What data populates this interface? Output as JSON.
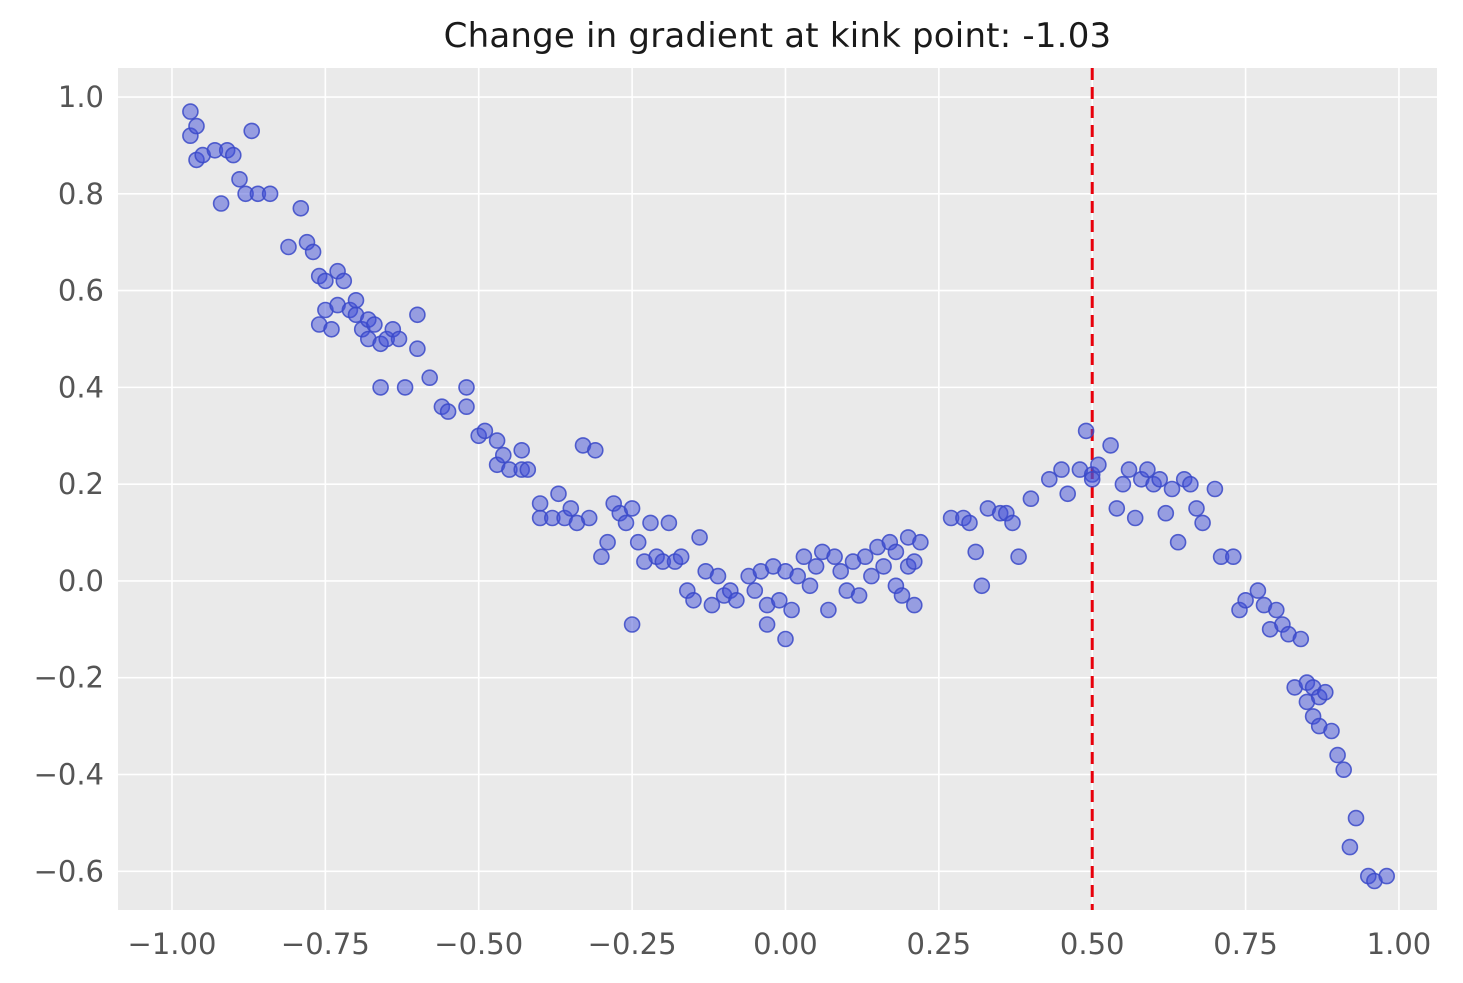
{
  "chart_data": {
    "type": "scatter",
    "title": "Change in gradient at kink point: -1.03",
    "xlabel": "",
    "ylabel": "",
    "grid": true,
    "legend": false,
    "xlim": [
      -1.088,
      1.062
    ],
    "ylim": [
      -0.68,
      1.06
    ],
    "x_ticks": [
      -1.0,
      -0.75,
      -0.5,
      -0.25,
      0.0,
      0.25,
      0.5,
      0.75,
      1.0
    ],
    "x_tick_labels": [
      "−1.00",
      "−0.75",
      "−0.50",
      "−0.25",
      "0.00",
      "0.25",
      "0.50",
      "0.75",
      "1.00"
    ],
    "y_ticks": [
      -0.6,
      -0.4,
      -0.2,
      0.0,
      0.2,
      0.4,
      0.6,
      0.8,
      1.0
    ],
    "y_tick_labels": [
      "−0.6",
      "−0.4",
      "−0.2",
      "0.0",
      "0.2",
      "0.4",
      "0.6",
      "0.8",
      "1.0"
    ],
    "colors": {
      "plot_background": "#eaeaea",
      "grid_line": "#ffffff",
      "marker_fill": "#4150d8",
      "marker_edge": "#3a49c8",
      "kink_line": "#e8000b",
      "tick_label": "#555555",
      "title": "#1a1a1a"
    },
    "marker": {
      "radius": 7.5,
      "fill_opacity": 0.5,
      "edge_opacity": 0.85
    },
    "kink_line": {
      "x": 0.5,
      "style": "dashed",
      "change_in_gradient": -1.03
    },
    "points": [
      [
        -0.97,
        0.97
      ],
      [
        -0.97,
        0.92
      ],
      [
        -0.96,
        0.94
      ],
      [
        -0.96,
        0.87
      ],
      [
        -0.95,
        0.88
      ],
      [
        -0.93,
        0.89
      ],
      [
        -0.91,
        0.89
      ],
      [
        -0.9,
        0.88
      ],
      [
        -0.92,
        0.78
      ],
      [
        -0.89,
        0.83
      ],
      [
        -0.87,
        0.93
      ],
      [
        -0.88,
        0.8
      ],
      [
        -0.86,
        0.8
      ],
      [
        -0.84,
        0.8
      ],
      [
        -0.81,
        0.69
      ],
      [
        -0.79,
        0.77
      ],
      [
        -0.78,
        0.7
      ],
      [
        -0.77,
        0.68
      ],
      [
        -0.76,
        0.63
      ],
      [
        -0.76,
        0.53
      ],
      [
        -0.75,
        0.62
      ],
      [
        -0.75,
        0.56
      ],
      [
        -0.74,
        0.52
      ],
      [
        -0.73,
        0.64
      ],
      [
        -0.73,
        0.57
      ],
      [
        -0.72,
        0.62
      ],
      [
        -0.71,
        0.56
      ],
      [
        -0.7,
        0.58
      ],
      [
        -0.7,
        0.55
      ],
      [
        -0.69,
        0.52
      ],
      [
        -0.68,
        0.54
      ],
      [
        -0.68,
        0.5
      ],
      [
        -0.67,
        0.53
      ],
      [
        -0.66,
        0.49
      ],
      [
        -0.66,
        0.4
      ],
      [
        -0.65,
        0.5
      ],
      [
        -0.64,
        0.52
      ],
      [
        -0.63,
        0.5
      ],
      [
        -0.62,
        0.4
      ],
      [
        -0.6,
        0.55
      ],
      [
        -0.6,
        0.48
      ],
      [
        -0.58,
        0.42
      ],
      [
        -0.56,
        0.36
      ],
      [
        -0.55,
        0.35
      ],
      [
        -0.52,
        0.4
      ],
      [
        -0.52,
        0.36
      ],
      [
        -0.5,
        0.3
      ],
      [
        -0.49,
        0.31
      ],
      [
        -0.47,
        0.29
      ],
      [
        -0.47,
        0.24
      ],
      [
        -0.46,
        0.26
      ],
      [
        -0.45,
        0.23
      ],
      [
        -0.43,
        0.27
      ],
      [
        -0.43,
        0.23
      ],
      [
        -0.42,
        0.23
      ],
      [
        -0.4,
        0.16
      ],
      [
        -0.4,
        0.13
      ],
      [
        -0.38,
        0.13
      ],
      [
        -0.37,
        0.18
      ],
      [
        -0.36,
        0.13
      ],
      [
        -0.35,
        0.15
      ],
      [
        -0.34,
        0.12
      ],
      [
        -0.33,
        0.28
      ],
      [
        -0.31,
        0.27
      ],
      [
        -0.32,
        0.13
      ],
      [
        -0.3,
        0.05
      ],
      [
        -0.29,
        0.08
      ],
      [
        -0.28,
        0.16
      ],
      [
        -0.27,
        0.14
      ],
      [
        -0.26,
        0.12
      ],
      [
        -0.25,
        0.15
      ],
      [
        -0.24,
        0.08
      ],
      [
        -0.23,
        0.04
      ],
      [
        -0.22,
        0.12
      ],
      [
        -0.21,
        0.05
      ],
      [
        -0.2,
        0.04
      ],
      [
        -0.19,
        0.12
      ],
      [
        -0.18,
        0.04
      ],
      [
        -0.17,
        0.05
      ],
      [
        -0.25,
        -0.09
      ],
      [
        -0.16,
        -0.02
      ],
      [
        -0.15,
        -0.04
      ],
      [
        -0.14,
        0.09
      ],
      [
        -0.13,
        0.02
      ],
      [
        -0.12,
        -0.05
      ],
      [
        -0.11,
        0.01
      ],
      [
        -0.1,
        -0.03
      ],
      [
        -0.09,
        -0.02
      ],
      [
        -0.08,
        -0.04
      ],
      [
        -0.06,
        0.01
      ],
      [
        -0.05,
        -0.02
      ],
      [
        -0.04,
        0.02
      ],
      [
        -0.03,
        -0.05
      ],
      [
        -0.02,
        0.03
      ],
      [
        -0.01,
        -0.04
      ],
      [
        -0.03,
        -0.09
      ],
      [
        0.0,
        -0.12
      ],
      [
        0.0,
        0.02
      ],
      [
        0.01,
        -0.06
      ],
      [
        0.02,
        0.01
      ],
      [
        0.03,
        0.05
      ],
      [
        0.04,
        -0.01
      ],
      [
        0.05,
        0.03
      ],
      [
        0.06,
        0.06
      ],
      [
        0.07,
        -0.06
      ],
      [
        0.08,
        0.05
      ],
      [
        0.09,
        0.02
      ],
      [
        0.1,
        -0.02
      ],
      [
        0.11,
        0.04
      ],
      [
        0.12,
        -0.03
      ],
      [
        0.13,
        0.05
      ],
      [
        0.14,
        0.01
      ],
      [
        0.15,
        0.07
      ],
      [
        0.16,
        0.03
      ],
      [
        0.17,
        0.08
      ],
      [
        0.18,
        -0.01
      ],
      [
        0.18,
        0.06
      ],
      [
        0.19,
        -0.03
      ],
      [
        0.2,
        0.09
      ],
      [
        0.2,
        0.03
      ],
      [
        0.21,
        -0.05
      ],
      [
        0.21,
        0.04
      ],
      [
        0.22,
        0.08
      ],
      [
        0.27,
        0.13
      ],
      [
        0.29,
        0.13
      ],
      [
        0.3,
        0.12
      ],
      [
        0.31,
        0.06
      ],
      [
        0.32,
        -0.01
      ],
      [
        0.33,
        0.15
      ],
      [
        0.35,
        0.14
      ],
      [
        0.36,
        0.14
      ],
      [
        0.37,
        0.12
      ],
      [
        0.38,
        0.05
      ],
      [
        0.4,
        0.17
      ],
      [
        0.43,
        0.21
      ],
      [
        0.45,
        0.23
      ],
      [
        0.46,
        0.18
      ],
      [
        0.48,
        0.23
      ],
      [
        0.49,
        0.31
      ],
      [
        0.5,
        0.22
      ],
      [
        0.5,
        0.21
      ],
      [
        0.51,
        0.24
      ],
      [
        0.53,
        0.28
      ],
      [
        0.54,
        0.15
      ],
      [
        0.55,
        0.2
      ],
      [
        0.56,
        0.23
      ],
      [
        0.57,
        0.13
      ],
      [
        0.58,
        0.21
      ],
      [
        0.59,
        0.23
      ],
      [
        0.6,
        0.2
      ],
      [
        0.61,
        0.21
      ],
      [
        0.62,
        0.14
      ],
      [
        0.63,
        0.19
      ],
      [
        0.64,
        0.08
      ],
      [
        0.65,
        0.21
      ],
      [
        0.66,
        0.2
      ],
      [
        0.67,
        0.15
      ],
      [
        0.68,
        0.12
      ],
      [
        0.7,
        0.19
      ],
      [
        0.71,
        0.05
      ],
      [
        0.73,
        0.05
      ],
      [
        0.74,
        -0.06
      ],
      [
        0.75,
        -0.04
      ],
      [
        0.77,
        -0.02
      ],
      [
        0.78,
        -0.05
      ],
      [
        0.79,
        -0.1
      ],
      [
        0.8,
        -0.06
      ],
      [
        0.81,
        -0.09
      ],
      [
        0.82,
        -0.11
      ],
      [
        0.83,
        -0.22
      ],
      [
        0.84,
        -0.12
      ],
      [
        0.85,
        -0.21
      ],
      [
        0.85,
        -0.25
      ],
      [
        0.86,
        -0.28
      ],
      [
        0.86,
        -0.22
      ],
      [
        0.87,
        -0.3
      ],
      [
        0.87,
        -0.24
      ],
      [
        0.88,
        -0.23
      ],
      [
        0.89,
        -0.31
      ],
      [
        0.9,
        -0.36
      ],
      [
        0.91,
        -0.39
      ],
      [
        0.92,
        -0.55
      ],
      [
        0.93,
        -0.49
      ],
      [
        0.95,
        -0.61
      ],
      [
        0.96,
        -0.62
      ],
      [
        0.98,
        -0.61
      ]
    ]
  }
}
